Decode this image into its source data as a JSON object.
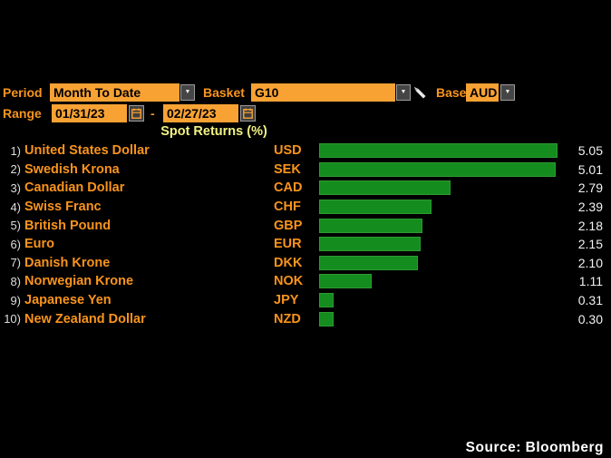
{
  "controls": {
    "period": {
      "label": "Period",
      "value": "Month To Date"
    },
    "basket": {
      "label": "Basket",
      "value": "G10"
    },
    "base": {
      "label": "Base",
      "value": "AUD"
    },
    "range": {
      "label": "Range",
      "from": "01/31/23",
      "separator": "-",
      "to": "02/27/23"
    },
    "dropdown_caret": "▼"
  },
  "chart_data": {
    "type": "bar",
    "orientation": "horizontal",
    "title": "Spot Returns (%)",
    "row_numbers": [
      "1)",
      "2)",
      "3)",
      "4)",
      "5)",
      "6)",
      "7)",
      "8)",
      "9)",
      "10)"
    ],
    "categories": [
      "United States Dollar",
      "Swedish Krona",
      "Canadian Dollar",
      "Swiss Franc",
      "British Pound",
      "Euro",
      "Danish Krone",
      "Norwegian Krone",
      "Japanese Yen",
      "New Zealand Dollar"
    ],
    "codes": [
      "USD",
      "SEK",
      "CAD",
      "CHF",
      "GBP",
      "EUR",
      "DKK",
      "NOK",
      "JPY",
      "NZD"
    ],
    "values": [
      5.05,
      5.01,
      2.79,
      2.39,
      2.18,
      2.15,
      2.1,
      1.11,
      0.31,
      0.3
    ],
    "value_labels": [
      "5.05",
      "5.01",
      "2.79",
      "2.39",
      "2.18",
      "2.15",
      "2.10",
      "1.11",
      "0.31",
      "0.30"
    ],
    "xlim": [
      0,
      5.3
    ],
    "grid": false,
    "legend": false,
    "bar_color": "#148c1e"
  },
  "colors": {
    "background": "#000000",
    "accent_orange_text": "#f9951c",
    "amber_field": "#f8a234",
    "bar_green": "#148c1e",
    "title_yellow": "#f2f282",
    "value_white": "#f2f2f2"
  },
  "footer": {
    "source": "Source: Bloomberg"
  }
}
